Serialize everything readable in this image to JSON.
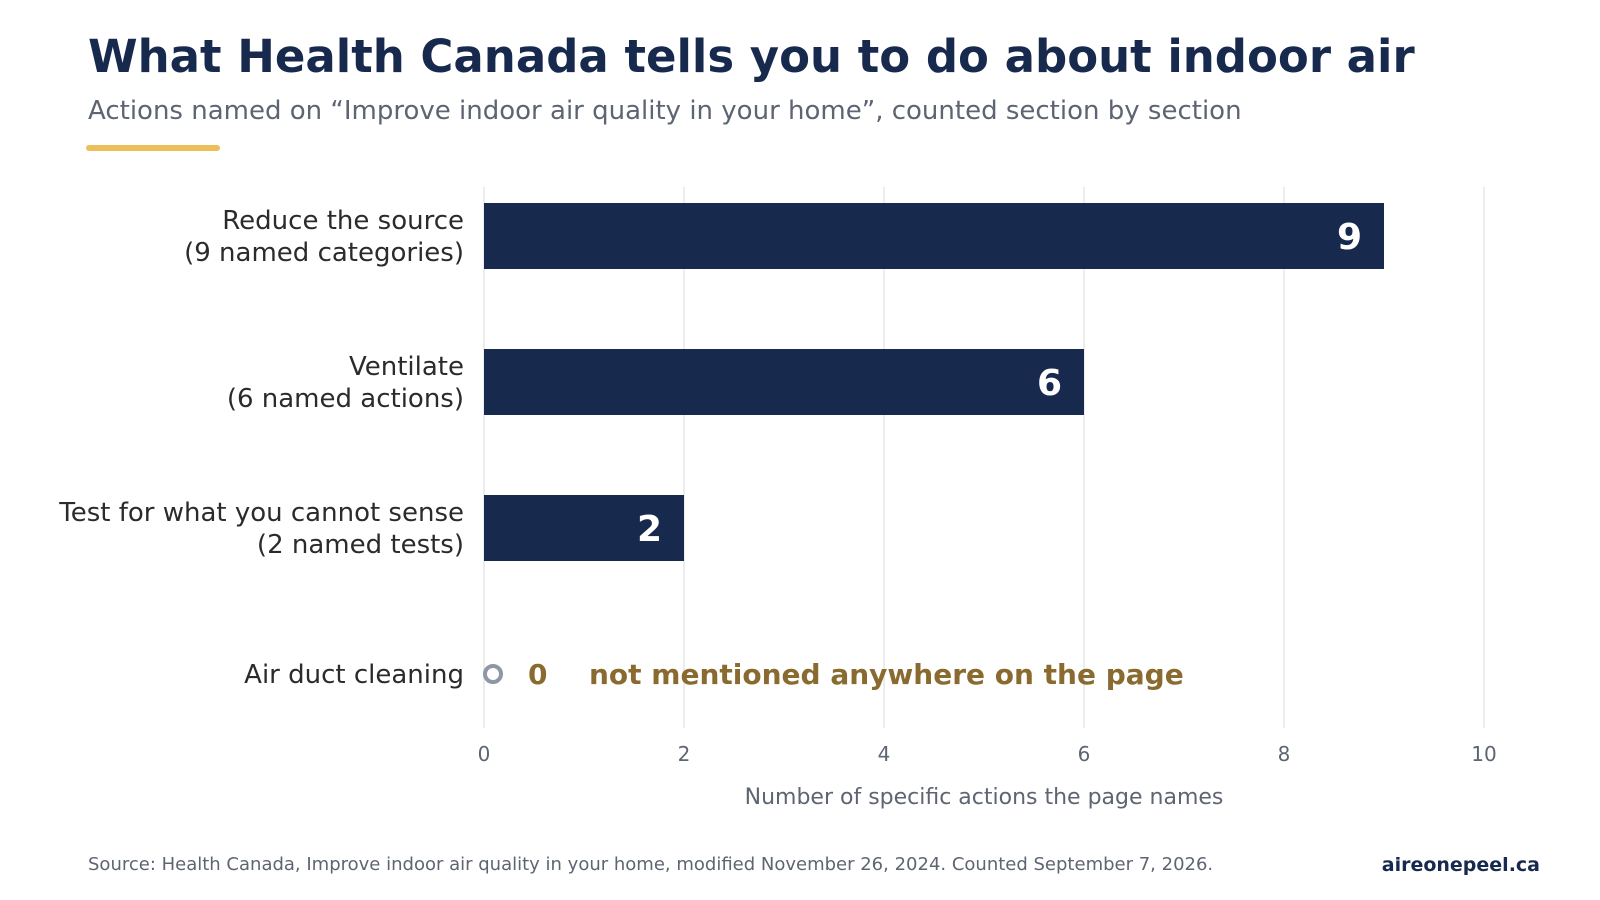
{
  "header": {
    "title": "What Health Canada tells you to do about indoor air",
    "subtitle": "Actions named on “Improve indoor air quality in your home”, counted section by section"
  },
  "colors": {
    "bar": "#172a4e",
    "bar_label": "#ffffff",
    "accent": "#ecbf5a",
    "annotation": "#8a6b2f",
    "zero_marker": "#8e97a6",
    "grid": "#e6e6e6",
    "category_text": "#2b2b2b",
    "axis_text": "#5e6572"
  },
  "chart_data": {
    "type": "bar",
    "orientation": "horizontal",
    "categories": [
      [
        "Reduce the source",
        "(9 named categories)"
      ],
      [
        "Ventilate",
        "(6 named actions)"
      ],
      [
        "Test for what you cannot sense",
        "(2 named tests)"
      ],
      [
        "Air duct cleaning"
      ]
    ],
    "values": [
      9,
      6,
      2,
      0
    ],
    "value_labels": [
      "9",
      "6",
      "2",
      "0"
    ],
    "zero_annotation": "not mentioned anywhere on the page",
    "xlabel": "Number of specific actions the page names",
    "ylabel": "",
    "xlim": [
      0,
      10
    ],
    "xticks": [
      0,
      2,
      4,
      6,
      8,
      10
    ],
    "grid": "vertical"
  },
  "footer": {
    "source": "Source: Health Canada, Improve indoor air quality in your home, modified November 26, 2024. Counted September 7, 2026.",
    "brand": "aireonepeel.ca"
  }
}
